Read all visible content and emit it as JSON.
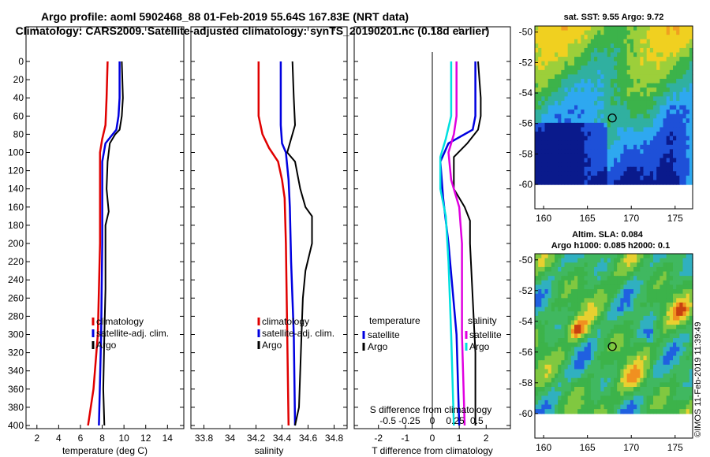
{
  "title_line1": "Argo profile: aoml 5902468_88 01-Feb-2019 55.64S 167.83E (NRT data)",
  "title_line2": "Climatology: CARS2009. Satellite-adjusted climatology: synTS_20190201.nc (0.18d earlier)",
  "stamp": "©IMOS 11-Feb-2019 11:39:49",
  "colors": {
    "climatology": "#e00000",
    "satellite": "#0000e0",
    "argo": "#000000",
    "sdiff": "#e000e0",
    "tdiff": "#00e0e0"
  },
  "chart_data": [
    {
      "type": "line",
      "id": "temperature",
      "xlabel": "temperature (deg C)",
      "ylabel": "depth",
      "xlim": [
        1,
        15.5
      ],
      "ylim": [
        400,
        0
      ],
      "xticks": [
        2,
        4,
        6,
        8,
        10,
        12,
        14
      ],
      "yticks": [
        0,
        20,
        40,
        60,
        80,
        100,
        120,
        140,
        160,
        180,
        200,
        220,
        240,
        260,
        280,
        300,
        320,
        340,
        360,
        380,
        400
      ],
      "legend": [
        "climatology",
        "satellite-adj. clim.",
        "Argo"
      ],
      "series": [
        {
          "name": "climatology",
          "color": "#e00000",
          "points": [
            [
              8.5,
              0
            ],
            [
              8.4,
              40
            ],
            [
              8.3,
              70
            ],
            [
              8.0,
              85
            ],
            [
              7.8,
              100
            ],
            [
              7.8,
              200
            ],
            [
              7.6,
              300
            ],
            [
              7.2,
              360
            ],
            [
              6.7,
              400
            ]
          ]
        },
        {
          "name": "satellite-adj. clim.",
          "color": "#0000e0",
          "points": [
            [
              9.6,
              0
            ],
            [
              9.6,
              40
            ],
            [
              9.5,
              60
            ],
            [
              9.3,
              75
            ],
            [
              8.3,
              90
            ],
            [
              8.0,
              110
            ],
            [
              8.0,
              200
            ],
            [
              7.9,
              300
            ],
            [
              7.7,
              400
            ]
          ]
        },
        {
          "name": "Argo",
          "color": "#000000",
          "points": [
            [
              9.8,
              0
            ],
            [
              9.9,
              40
            ],
            [
              9.8,
              60
            ],
            [
              9.6,
              75
            ],
            [
              9.2,
              80
            ],
            [
              8.7,
              90
            ],
            [
              8.5,
              110
            ],
            [
              8.4,
              140
            ],
            [
              8.6,
              165
            ],
            [
              8.3,
              180
            ],
            [
              8.3,
              250
            ],
            [
              8.2,
              300
            ],
            [
              8.1,
              360
            ],
            [
              8.2,
              400
            ]
          ]
        }
      ]
    },
    {
      "type": "line",
      "id": "salinity",
      "xlabel": "salinity",
      "ylabel": "depth",
      "xlim": [
        33.7,
        34.9
      ],
      "ylim": [
        400,
        0
      ],
      "xticks": [
        33.8,
        34,
        34.2,
        34.4,
        34.6,
        34.8
      ],
      "xtick_labels": [
        "33.8",
        "34",
        "34.2",
        "34.4",
        "34.6",
        "34.8"
      ],
      "yticks": [
        0,
        20,
        40,
        60,
        80,
        100,
        120,
        140,
        160,
        180,
        200,
        220,
        240,
        260,
        280,
        300,
        320,
        340,
        360,
        380,
        400
      ],
      "legend": [
        "climatology",
        "satellite-adj. clim.",
        "Argo"
      ],
      "series": [
        {
          "name": "climatology",
          "color": "#e00000",
          "points": [
            [
              34.22,
              0
            ],
            [
              34.22,
              60
            ],
            [
              34.25,
              80
            ],
            [
              34.3,
              95
            ],
            [
              34.37,
              110
            ],
            [
              34.4,
              130
            ],
            [
              34.42,
              150
            ],
            [
              34.43,
              200
            ],
            [
              34.44,
              300
            ],
            [
              34.45,
              400
            ]
          ]
        },
        {
          "name": "satellite-adj. clim.",
          "color": "#0000e0",
          "points": [
            [
              34.39,
              0
            ],
            [
              34.39,
              70
            ],
            [
              34.4,
              90
            ],
            [
              34.43,
              100
            ],
            [
              34.45,
              130
            ],
            [
              34.46,
              160
            ],
            [
              34.47,
              220
            ],
            [
              34.49,
              300
            ],
            [
              34.5,
              400
            ]
          ]
        },
        {
          "name": "Argo",
          "color": "#000000",
          "points": [
            [
              34.48,
              0
            ],
            [
              34.49,
              40
            ],
            [
              34.5,
              70
            ],
            [
              34.46,
              90
            ],
            [
              34.44,
              100
            ],
            [
              34.5,
              110
            ],
            [
              34.54,
              140
            ],
            [
              34.58,
              160
            ],
            [
              34.63,
              170
            ],
            [
              34.63,
              200
            ],
            [
              34.58,
              230
            ],
            [
              34.56,
              260
            ],
            [
              34.55,
              300
            ],
            [
              34.53,
              380
            ],
            [
              34.5,
              400
            ]
          ]
        }
      ]
    },
    {
      "type": "line",
      "id": "difference",
      "xlabel": "T difference from climatology",
      "xlabel_top": "S difference from climatology",
      "ylabel": "depth",
      "xlim": [
        -2.9,
        2.9
      ],
      "ylim": [
        400,
        0
      ],
      "xticks": [
        -2,
        -1,
        0,
        1,
        2
      ],
      "xtick_labels": [
        "-2",
        "-1",
        "0",
        "1",
        "2"
      ],
      "xticks_s": [
        -1.65,
        -0.85,
        0,
        0.85,
        1.65
      ],
      "xtick_labels_s": [
        "-0.5",
        "-0.25",
        "0",
        "0.25",
        "0.5"
      ],
      "yticks": [
        0,
        20,
        40,
        60,
        80,
        100,
        120,
        140,
        160,
        180,
        200,
        220,
        240,
        260,
        280,
        300,
        320,
        340,
        360,
        380,
        400
      ],
      "legend_left_title": "temperature",
      "legend_right_title": "salinity",
      "legend_left": [
        "satellite",
        "Argo"
      ],
      "legend_right": [
        "satellite",
        "Argo"
      ],
      "series": [
        {
          "name": "T satellite",
          "color": "#0000e0",
          "points": [
            [
              1.6,
              0
            ],
            [
              1.6,
              60
            ],
            [
              1.5,
              75
            ],
            [
              0.6,
              90
            ],
            [
              0.3,
              110
            ],
            [
              0.4,
              150
            ],
            [
              0.6,
              200
            ],
            [
              0.9,
              300
            ],
            [
              1.0,
              400
            ]
          ]
        },
        {
          "name": "T Argo",
          "color": "#000000",
          "points": [
            [
              1.7,
              0
            ],
            [
              1.8,
              40
            ],
            [
              1.8,
              60
            ],
            [
              1.7,
              75
            ],
            [
              1.3,
              90
            ],
            [
              0.8,
              105
            ],
            [
              0.8,
              140
            ],
            [
              1.2,
              160
            ],
            [
              1.4,
              175
            ],
            [
              1.4,
              200
            ],
            [
              1.5,
              260
            ],
            [
              1.6,
              320
            ],
            [
              1.6,
              400
            ]
          ]
        },
        {
          "name": "S satellite",
          "color": "#e000e0",
          "points": [
            [
              0.9,
              0
            ],
            [
              0.9,
              60
            ],
            [
              0.8,
              80
            ],
            [
              0.6,
              100
            ],
            [
              0.7,
              130
            ],
            [
              1.0,
              160
            ],
            [
              1.1,
              200
            ],
            [
              1.1,
              300
            ],
            [
              1.2,
              400
            ]
          ]
        },
        {
          "name": "S Argo",
          "color": "#00e0e0",
          "points": [
            [
              0.7,
              0
            ],
            [
              0.7,
              60
            ],
            [
              0.5,
              85
            ],
            [
              0.3,
              105
            ],
            [
              0.3,
              140
            ],
            [
              0.5,
              170
            ],
            [
              0.6,
              220
            ],
            [
              0.7,
              300
            ],
            [
              0.8,
              400
            ]
          ]
        }
      ]
    },
    {
      "type": "heatmap",
      "id": "sst_map",
      "title": "sat. SST: 9.55 Argo: 9.72",
      "xlim": [
        159,
        177
      ],
      "ylim": [
        -61.6,
        -49.6
      ],
      "xticks": [
        160,
        165,
        170,
        175
      ],
      "yticks": [
        -50,
        -52,
        -54,
        -56,
        -58,
        -60
      ],
      "marker": [
        167.83,
        -55.64
      ]
    },
    {
      "type": "heatmap",
      "id": "sla_map",
      "title": "Altim. SLA: 0.084",
      "subtitle": "Argo h1000: 0.085 h2000: 0.1",
      "xlim": [
        159,
        177
      ],
      "ylim": [
        -61.6,
        -49.6
      ],
      "xticks": [
        160,
        165,
        170,
        175
      ],
      "yticks": [
        -50,
        -52,
        -54,
        -56,
        -58,
        -60
      ],
      "marker": [
        167.83,
        -55.64
      ]
    }
  ]
}
